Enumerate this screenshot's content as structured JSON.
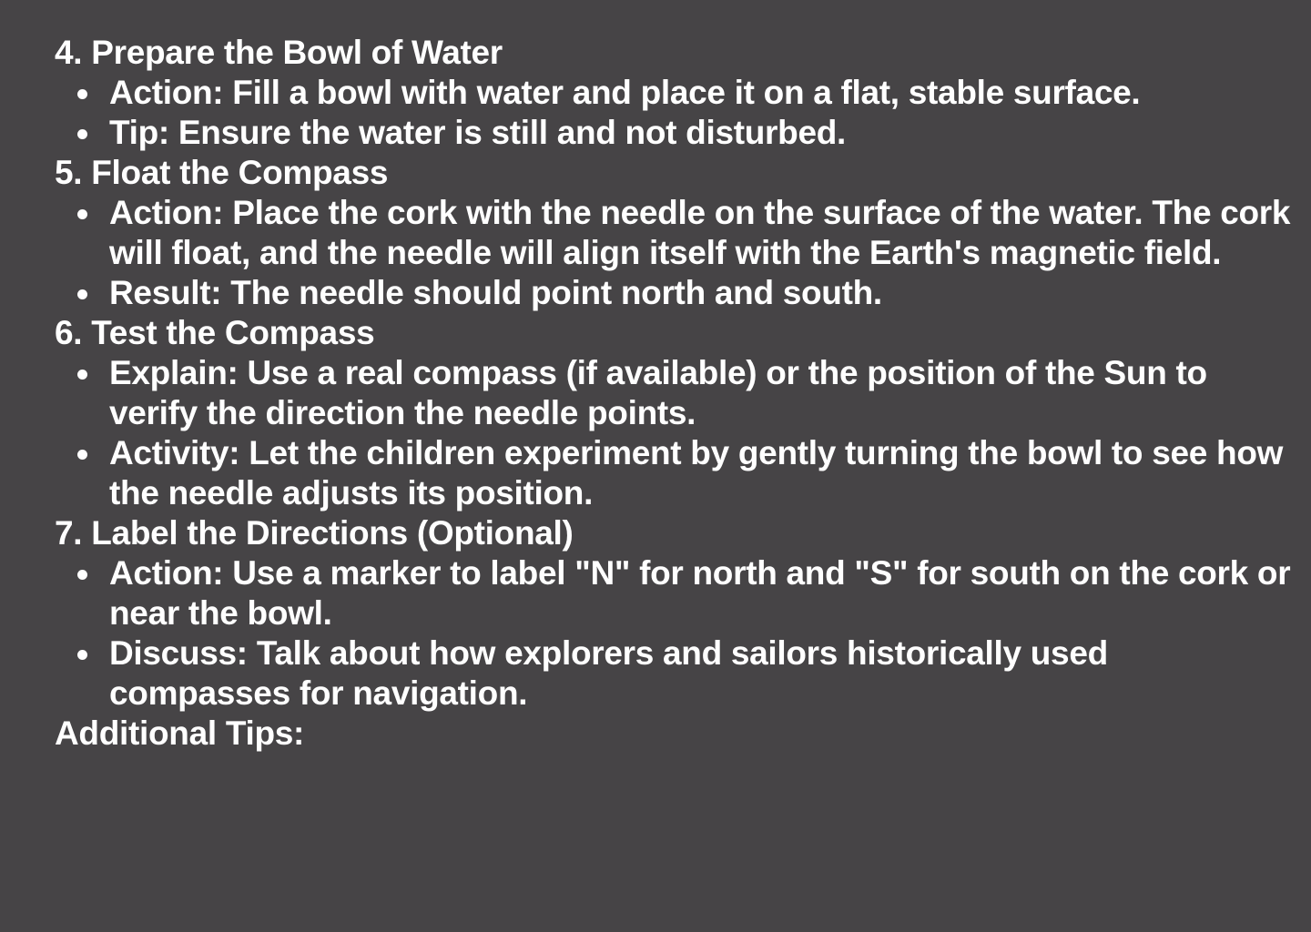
{
  "steps": [
    {
      "title": "4. Prepare the Bowl of Water",
      "bullets": [
        "Action: Fill a bowl with water and place it on a flat, stable surface.",
        "Tip: Ensure the water is still and not disturbed."
      ]
    },
    {
      "title": "5. Float the Compass",
      "bullets": [
        "Action: Place the cork with the needle on the surface of the water. The cork will float, and the needle will align itself with the Earth's magnetic field.",
        "Result: The needle should point north and south."
      ]
    },
    {
      "title": "6. Test the Compass",
      "bullets": [
        "Explain: Use a real compass (if available) or the position of the Sun to verify the direction the needle points.",
        "Activity: Let the children experiment by gently turning the bowl to see how the needle adjusts its position."
      ]
    },
    {
      "title": "7. Label the Directions (Optional)",
      "bullets": [
        "Action: Use a marker to label \"N\" for north and \"S\" for south on the cork or near the bowl.",
        "Discuss: Talk about how explorers and sailors historically used compasses for navigation."
      ]
    }
  ],
  "footer_heading": "Additional Tips:"
}
